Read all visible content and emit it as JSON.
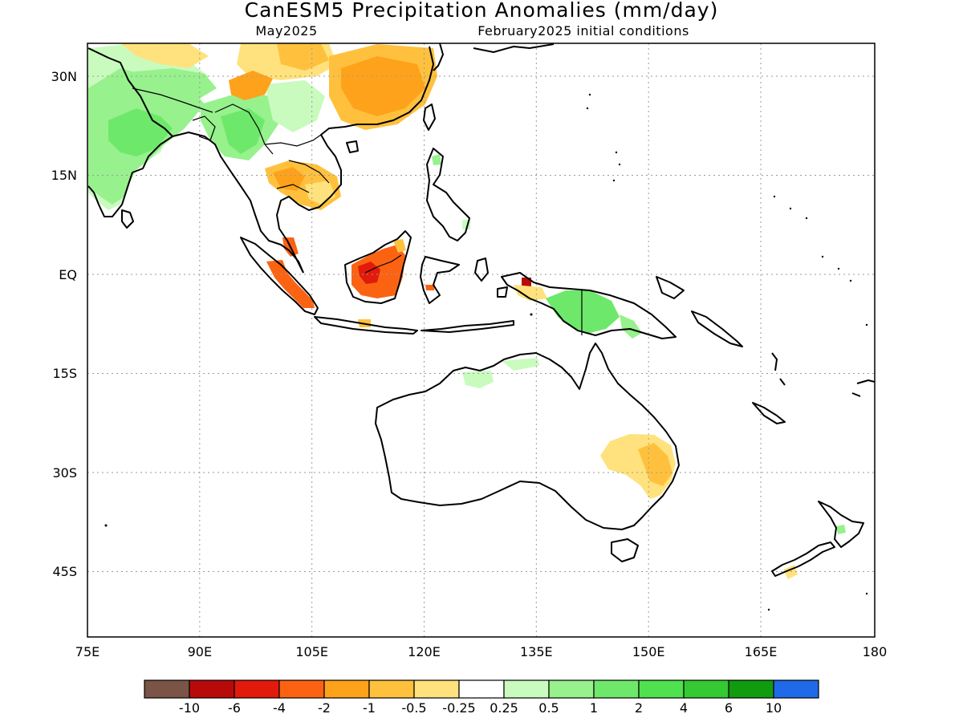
{
  "title": "CanESM5 Precipitation Anomalies (mm/day)",
  "subtitle_left": "May2025",
  "subtitle_right": "February2025 initial conditions",
  "map": {
    "lon_range": [
      75,
      180
    ],
    "lat_range": [
      -47,
      31
    ],
    "lon_ticks": [
      {
        "value": 75,
        "label": "75E"
      },
      {
        "value": 90,
        "label": "90E"
      },
      {
        "value": 105,
        "label": "105E"
      },
      {
        "value": 120,
        "label": "120E"
      },
      {
        "value": 135,
        "label": "135E"
      },
      {
        "value": 150,
        "label": "150E"
      },
      {
        "value": 165,
        "label": "165E"
      },
      {
        "value": 180,
        "label": "180"
      }
    ],
    "lat_ticks": [
      {
        "value": 30,
        "label": "30N"
      },
      {
        "value": 15,
        "label": "15N"
      },
      {
        "value": 0,
        "label": "EQ"
      },
      {
        "value": -15,
        "label": "15S"
      },
      {
        "value": -30,
        "label": "30S"
      },
      {
        "value": -45,
        "label": "45S"
      }
    ],
    "grid": true,
    "anomaly_regions": [
      {
        "region": "India",
        "category": "0.5 to 1",
        "color": "#97f18d"
      },
      {
        "region": "India (west)",
        "category": "0.25 to 0.5",
        "color": "#c9fbbf"
      },
      {
        "region": "Northern India / Bangladesh",
        "category": "1 to 2",
        "color": "#6ee86a"
      },
      {
        "region": "Northern Myanmar",
        "category": "1 to 2",
        "color": "#6ee86a"
      },
      {
        "region": "Tibet / West China",
        "category": "-0.5 to -0.25",
        "color": "#ffe27d"
      },
      {
        "region": "Southeast China",
        "category": "-1 to -0.5",
        "color": "#ffc13d"
      },
      {
        "region": "Central China",
        "category": "-2 to -1",
        "color": "#ffa21b"
      },
      {
        "region": "Thailand / Cambodia",
        "category": "-2 to -1",
        "color": "#ffa21b"
      },
      {
        "region": "Sumatra",
        "category": "-4 to -2",
        "color": "#fb6313"
      },
      {
        "region": "Borneo",
        "category": "-4 to -2",
        "color": "#fb6313"
      },
      {
        "region": "Borneo (centre)",
        "category": "-6 to -4",
        "color": "#e11a0c"
      },
      {
        "region": "West Papua (Bird's Head)",
        "category": "-10 to -6",
        "color": "#b90a0a"
      },
      {
        "region": "New Guinea",
        "category": "1 to 2",
        "color": "#6ee86a"
      },
      {
        "region": "Northern Australia (Kimberley / Top End)",
        "category": "0.25 to 0.5",
        "color": "#c9fbbf"
      },
      {
        "region": "Eastern Australia (Queensland / NSW)",
        "category": "-0.5 to -0.25",
        "color": "#ffe27d"
      },
      {
        "region": "Eastern Australia (inland NSW)",
        "category": "-1 to -0.5",
        "color": "#ffc13d"
      },
      {
        "region": "New Zealand South Island",
        "category": "-0.5 to -0.25",
        "color": "#ffe27d"
      },
      {
        "region": "New Zealand North Island",
        "category": "0.5 to 1",
        "color": "#97f18d"
      }
    ]
  },
  "colorbar": {
    "colors": [
      "#7a5446",
      "#b90a0a",
      "#e11a0c",
      "#fb6313",
      "#ffa21b",
      "#ffc13d",
      "#ffe27d",
      "#ffffff",
      "#c9fbbf",
      "#97f18d",
      "#6ee86a",
      "#4fe24e",
      "#35c932",
      "#119c10",
      "#1f6ae8"
    ],
    "labels": [
      "-10",
      "-6",
      "-4",
      "-2",
      "-1",
      "-0.5",
      "-0.25",
      "0.25",
      "0.5",
      "1",
      "2",
      "4",
      "6",
      "10"
    ]
  }
}
